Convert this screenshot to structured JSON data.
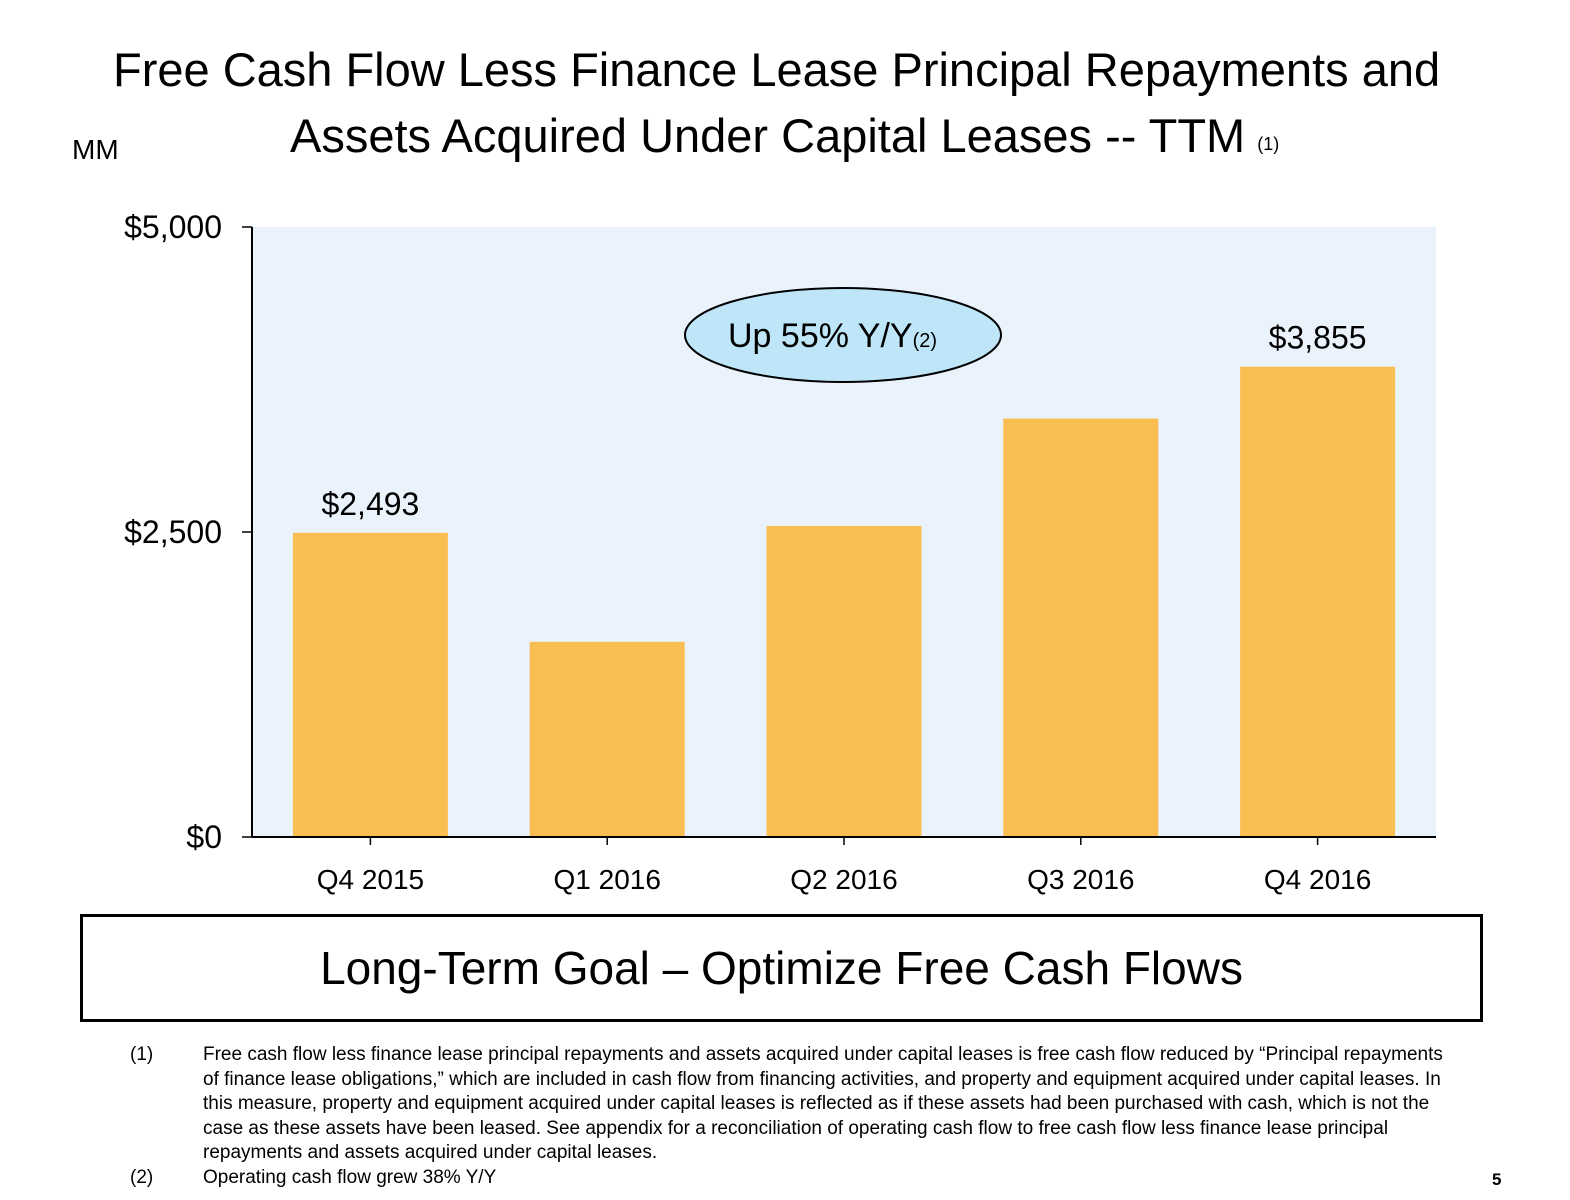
{
  "title": {
    "line1": "Free Cash Flow Less Finance Lease Principal Repayments and",
    "line2": "Assets Acquired Under Capital Leases -- TTM",
    "note": "(1)"
  },
  "unit_label": "MM",
  "colors": {
    "bar": "#F9BE52",
    "plot_background": "#EAF3FC",
    "callout_fill": "#BEE6F8",
    "axis": "#000000"
  },
  "callout": {
    "text": "Up 55% Y/Y",
    "note": "(2)"
  },
  "chart_data": {
    "type": "bar",
    "categories": [
      "Q4 2015",
      "Q1 2016",
      "Q2 2016",
      "Q3 2016",
      "Q4 2016"
    ],
    "values": [
      2493,
      1600,
      2550,
      3430,
      3855
    ],
    "data_labels": [
      "$2,493",
      "",
      "",
      "",
      "$3,855"
    ],
    "ylim": [
      0,
      5000
    ],
    "yticks": [
      0,
      2500,
      5000
    ],
    "ytick_labels": [
      "$0",
      "$2,500",
      "$5,000"
    ],
    "grid": false,
    "legend": "none"
  },
  "goal": {
    "text": "Long-Term Goal – Optimize Free Cash Flows"
  },
  "footnotes": [
    {
      "marker": "(1)",
      "text": "Free cash flow less finance lease principal repayments and assets acquired under capital leases is free cash flow reduced by “Principal repayments of finance lease obligations,” which are included in cash flow from financing activities, and property and equipment acquired under capital leases. In this measure, property and equipment acquired under capital leases is reflected as if these assets had been purchased with cash, which is not the case as these assets have been leased. See appendix for a reconciliation of operating cash flow to free cash flow less finance lease principal repayments and assets acquired under capital leases."
    },
    {
      "marker": "(2)",
      "text": "Operating cash flow grew 38% Y/Y"
    }
  ],
  "page_number": "5"
}
